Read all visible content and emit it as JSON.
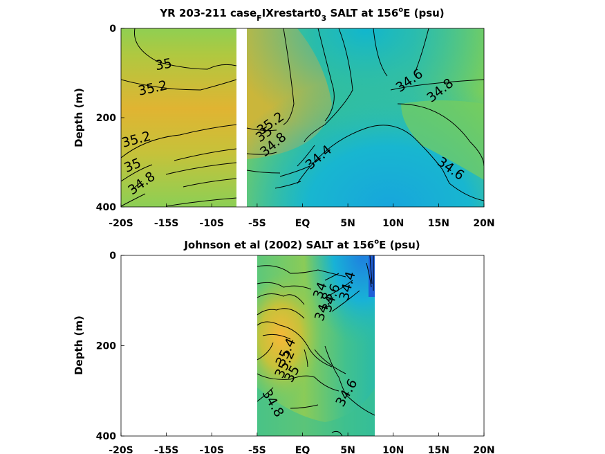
{
  "chart_data": [
    {
      "type": "heatmap",
      "title": "YR 203-211 case",
      "title_sub1": "F",
      "title_mid": "IXrestart0",
      "title_sub2": "3",
      "title_end1": " SALT at 156",
      "title_sup": "o",
      "title_end2": "E (psu)",
      "ylabel": "Depth (m)",
      "xlim": [
        -20,
        20
      ],
      "ylim": [
        0,
        400
      ],
      "y_reversed": true,
      "x_ticks": [
        -20,
        -15,
        -10,
        -5,
        0,
        5,
        10,
        15,
        20
      ],
      "x_tick_labels": [
        "-20S",
        "-15S",
        "-10S",
        "-5S",
        "EQ",
        "5N",
        "10N",
        "15N",
        "20N"
      ],
      "y_ticks": [
        0,
        200,
        400
      ],
      "y_tick_labels": [
        "0",
        "200",
        "400"
      ],
      "data_x_range": [
        -20,
        20
      ],
      "gap_x_range": [
        -7.4,
        -6.9
      ],
      "contour_labels": [
        {
          "text": "35",
          "x": -15.3,
          "y": 82
        },
        {
          "text": "35.2",
          "x": -16.5,
          "y": 135
        },
        {
          "text": "35.2",
          "x": -18.3,
          "y": 250
        },
        {
          "text": "35",
          "x": -18.7,
          "y": 308
        },
        {
          "text": "34.8",
          "x": -17.7,
          "y": 348
        },
        {
          "text": "35.2",
          "x": -3.5,
          "y": 214
        },
        {
          "text": "35",
          "x": -4.2,
          "y": 238
        },
        {
          "text": "34.8",
          "x": -3.2,
          "y": 261
        },
        {
          "text": "34.4",
          "x": 1.8,
          "y": 290
        },
        {
          "text": "34.6",
          "x": 11.8,
          "y": 118
        },
        {
          "text": "34.8",
          "x": 15.2,
          "y": 140
        },
        {
          "text": "34.6",
          "x": 16.3,
          "y": 315
        }
      ]
    },
    {
      "type": "heatmap",
      "title": "Johnson et al (2002) SALT at 156",
      "title_sup": "o",
      "title_end": "E (psu)",
      "ylabel": "Depth (m)",
      "xlim": [
        -20,
        20
      ],
      "ylim": [
        0,
        400
      ],
      "y_reversed": true,
      "x_ticks": [
        -20,
        -15,
        -10,
        -5,
        0,
        5,
        10,
        15,
        20
      ],
      "x_tick_labels": [
        "-20S",
        "-15S",
        "-10S",
        "-5S",
        "EQ",
        "5N",
        "10N",
        "15N",
        "20N"
      ],
      "y_ticks": [
        0,
        200,
        400
      ],
      "y_tick_labels": [
        "0",
        "200",
        "400"
      ],
      "data_x_range": [
        -5,
        8
      ],
      "contour_labels": [
        {
          "text": "34.4",
          "x": 5.0,
          "y": 68
        },
        {
          "text": "34.6",
          "x": 3.2,
          "y": 95
        },
        {
          "text": "34.8",
          "x": 2.4,
          "y": 114
        },
        {
          "text": "34",
          "x": 2.0,
          "y": 78
        },
        {
          "text": "35.4",
          "x": -1.8,
          "y": 215
        },
        {
          "text": "35.2",
          "x": -1.9,
          "y": 241
        },
        {
          "text": "35",
          "x": -1.1,
          "y": 263
        },
        {
          "text": "34.8",
          "x": -3.3,
          "y": 328
        },
        {
          "text": "34.6",
          "x": 4.9,
          "y": 305
        }
      ]
    }
  ],
  "colors": {
    "salt_low": "#1a9be0",
    "salt_mid": "#30bd9c",
    "salt_high": "#f0b830",
    "axis": "#000000"
  }
}
